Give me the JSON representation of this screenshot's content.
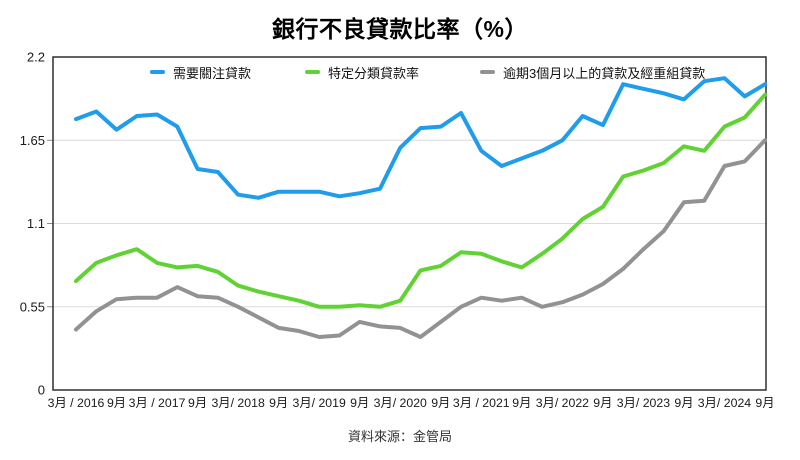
{
  "header": {
    "title": "銀行不良貸款比率（%）"
  },
  "footer": {
    "source": "資料來源：金管局"
  },
  "colors": {
    "series_blue": "#1f9ceb",
    "series_green": "#61d233",
    "series_gray": "#929292",
    "grid": "#dcdcdc",
    "plot_border": "#2f2f2f",
    "axis_text": "#1a1a1a"
  },
  "chart_data": {
    "type": "line",
    "title": "銀行不良貸款比率（%）",
    "xlabel": "",
    "ylabel": "",
    "ylim": [
      0,
      2.2
    ],
    "y_ticks": [
      0,
      0.55,
      1.1,
      1.65,
      2.2
    ],
    "grid": "horizontal",
    "legend_position": "top",
    "x_frequency": "quarterly",
    "x_points_per_label": 2,
    "x_tick_labels": [
      "3月 / 2016",
      "9月",
      "3月 / 2017",
      "9月",
      "3月/ 2018",
      "9月",
      "3月/ 2019",
      "9月",
      "3月/ 2020",
      "9月",
      "3月 / 2021",
      "9月",
      "3月/ 2022",
      "9月",
      "3月/ 2023",
      "9月",
      "3月/ 2024",
      "9月"
    ],
    "series": [
      {
        "name": "需要關注貸款",
        "color": "#1f9ceb",
        "values": [
          1.79,
          1.84,
          1.72,
          1.81,
          1.82,
          1.74,
          1.46,
          1.44,
          1.29,
          1.27,
          1.31,
          1.31,
          1.31,
          1.28,
          1.3,
          1.33,
          1.6,
          1.73,
          1.74,
          1.83,
          1.58,
          1.48,
          1.53,
          1.58,
          1.65,
          1.81,
          1.75,
          2.02,
          1.99,
          1.96,
          1.92,
          2.04,
          2.06,
          1.94,
          2.02
        ]
      },
      {
        "name": "特定分類貸款率",
        "color": "#61d233",
        "values": [
          0.72,
          0.84,
          0.89,
          0.93,
          0.84,
          0.81,
          0.82,
          0.78,
          0.69,
          0.65,
          0.62,
          0.59,
          0.55,
          0.55,
          0.56,
          0.55,
          0.59,
          0.79,
          0.82,
          0.91,
          0.9,
          0.85,
          0.81,
          0.9,
          1.0,
          1.13,
          1.21,
          1.41,
          1.45,
          1.5,
          1.61,
          1.58,
          1.74,
          1.8,
          1.95
        ]
      },
      {
        "name": "逾期3個月以上的貸款及經重組貸款",
        "color": "#929292",
        "values": [
          0.4,
          0.52,
          0.6,
          0.61,
          0.61,
          0.68,
          0.62,
          0.61,
          0.55,
          0.48,
          0.41,
          0.39,
          0.35,
          0.36,
          0.45,
          0.42,
          0.41,
          0.35,
          0.45,
          0.55,
          0.61,
          0.59,
          0.61,
          0.55,
          0.58,
          0.63,
          0.7,
          0.8,
          0.93,
          1.05,
          1.24,
          1.25,
          1.48,
          1.51,
          1.65
        ]
      }
    ]
  }
}
